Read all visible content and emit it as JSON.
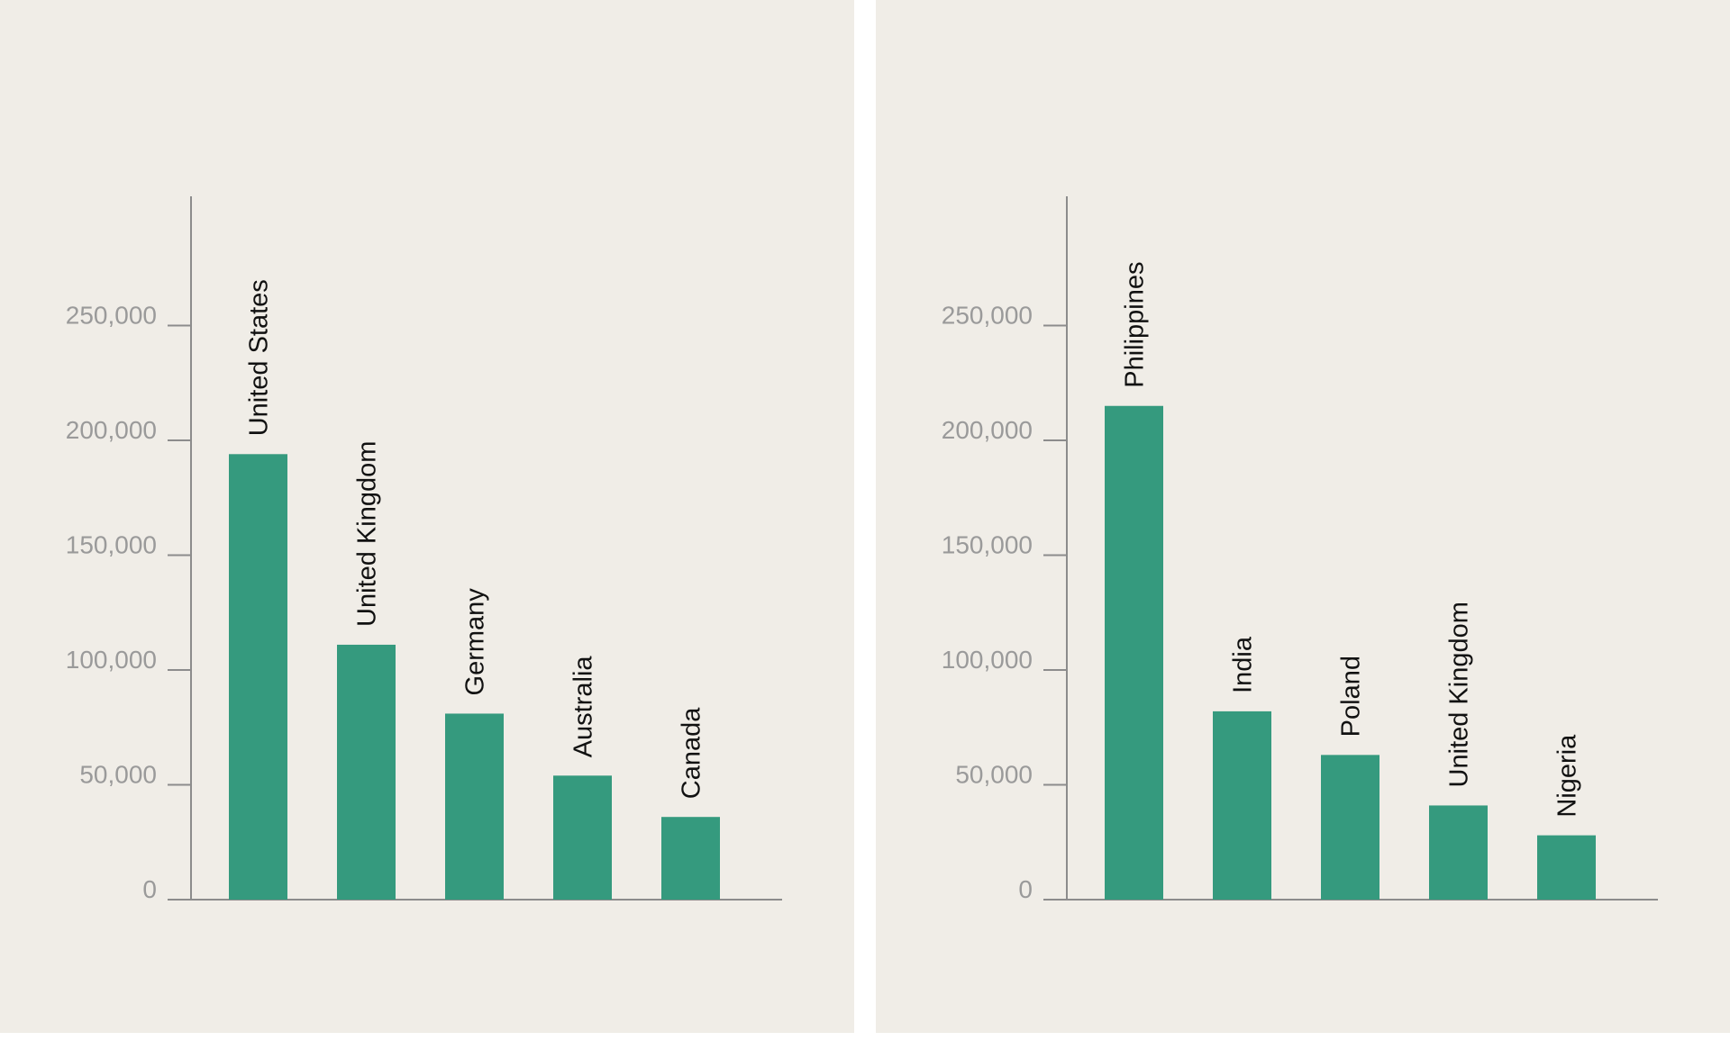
{
  "colors": {
    "background": "#f0ede7",
    "bar": "#359a7e",
    "axis": "#8c8c8c",
    "tick_text": "#9a9a9a",
    "label_text": "#111111"
  },
  "chart_data": [
    {
      "type": "bar",
      "categories": [
        "United States",
        "United Kingdom",
        "Germany",
        "Australia",
        "Canada"
      ],
      "values": [
        194000,
        111000,
        81000,
        54000,
        36000
      ],
      "ylim": [
        0,
        300000
      ],
      "yticks": [
        0,
        50000,
        100000,
        150000,
        200000,
        250000
      ],
      "ytick_labels": [
        "0",
        "50,000",
        "100,000",
        "150,000",
        "200,000",
        "250,000"
      ],
      "title": "",
      "xlabel": "",
      "ylabel": "",
      "grid": false,
      "legend": "none"
    },
    {
      "type": "bar",
      "categories": [
        "Philippines",
        "India",
        "Poland",
        "United Kingdom",
        "Nigeria"
      ],
      "values": [
        215000,
        82000,
        63000,
        41000,
        28000
      ],
      "ylim": [
        0,
        300000
      ],
      "yticks": [
        0,
        50000,
        100000,
        150000,
        200000,
        250000
      ],
      "ytick_labels": [
        "0",
        "50,000",
        "100,000",
        "150,000",
        "200,000",
        "250,000"
      ],
      "title": "",
      "xlabel": "",
      "ylabel": "",
      "grid": false,
      "legend": "none"
    }
  ]
}
